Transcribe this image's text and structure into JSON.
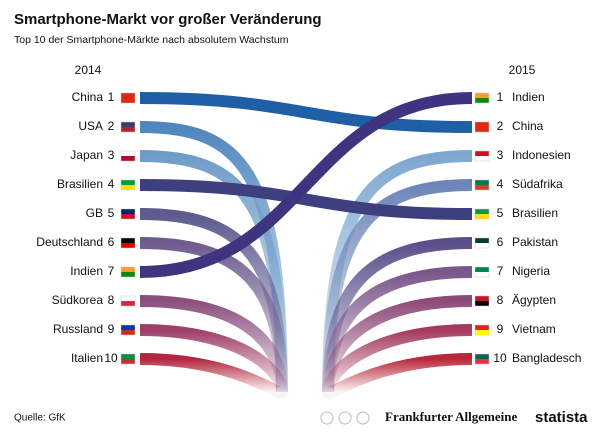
{
  "chart_data": {
    "type": "bump",
    "title": "Smartphone-Markt vor großer Veränderung",
    "subtitle": "Top 10 der Smartphone-Märkte nach absolutem Wachstum",
    "x": [
      "2014",
      "2015"
    ],
    "series": [
      {
        "name": "China",
        "color": "#1f5fa6",
        "flag": [
          "#de2910",
          "#de2910"
        ],
        "values": [
          1,
          2
        ]
      },
      {
        "name": "USA",
        "color": "#4f86bf",
        "flag": [
          "#3c3b6e",
          "#b22234"
        ],
        "values": [
          2,
          null
        ]
      },
      {
        "name": "Japan",
        "color": "#6e9cc9",
        "flag": [
          "#ffffff",
          "#bc002d"
        ],
        "values": [
          3,
          null
        ]
      },
      {
        "name": "Brasilien",
        "color": "#3d3f7e",
        "flag": [
          "#009c3b",
          "#ffdf00"
        ],
        "values": [
          4,
          5
        ]
      },
      {
        "name": "GB",
        "color": "#5d5a8f",
        "flag": [
          "#012169",
          "#c8102e"
        ],
        "values": [
          5,
          null
        ]
      },
      {
        "name": "Deutschland",
        "color": "#6f5b8e",
        "flag": [
          "#000000",
          "#dd0000"
        ],
        "values": [
          6,
          null
        ]
      },
      {
        "name": "Indien",
        "color": "#3e3480",
        "flag": [
          "#ff9933",
          "#138808"
        ],
        "values": [
          7,
          1
        ]
      },
      {
        "name": "Südkorea",
        "color": "#8b4f7e",
        "flag": [
          "#ffffff",
          "#cd2e3a"
        ],
        "values": [
          8,
          null
        ]
      },
      {
        "name": "Russland",
        "color": "#9e3f67",
        "flag": [
          "#0039a6",
          "#d52b1e"
        ],
        "values": [
          9,
          null
        ]
      },
      {
        "name": "Italien",
        "color": "#b3263f",
        "flag": [
          "#009246",
          "#ce2b37"
        ],
        "values": [
          10,
          null
        ]
      },
      {
        "name": "Indonesien",
        "color": "#7ea7d0",
        "flag": [
          "#ce1126",
          "#ffffff"
        ],
        "values": [
          null,
          3
        ]
      },
      {
        "name": "Südafrika",
        "color": "#6d86b8",
        "flag": [
          "#007a4d",
          "#de3831"
        ],
        "values": [
          null,
          4
        ]
      },
      {
        "name": "Pakistan",
        "color": "#5b4f8b",
        "flag": [
          "#01411c",
          "#ffffff"
        ],
        "values": [
          null,
          6
        ]
      },
      {
        "name": "Nigeria",
        "color": "#7a5689",
        "flag": [
          "#008751",
          "#ffffff"
        ],
        "values": [
          null,
          7
        ]
      },
      {
        "name": "Ägypten",
        "color": "#8e4a78",
        "flag": [
          "#ce1126",
          "#000000"
        ],
        "values": [
          null,
          8
        ]
      },
      {
        "name": "Vietnam",
        "color": "#a33a5d",
        "flag": [
          "#da251d",
          "#ffff00"
        ],
        "values": [
          null,
          9
        ]
      },
      {
        "name": "Bangladesch",
        "color": "#b8283a",
        "flag": [
          "#006a4e",
          "#f42a41"
        ],
        "values": [
          null,
          10
        ]
      }
    ],
    "source": "Quelle: GfK",
    "logos": [
      "Frankfurter Allgemeine",
      "statista"
    ]
  }
}
